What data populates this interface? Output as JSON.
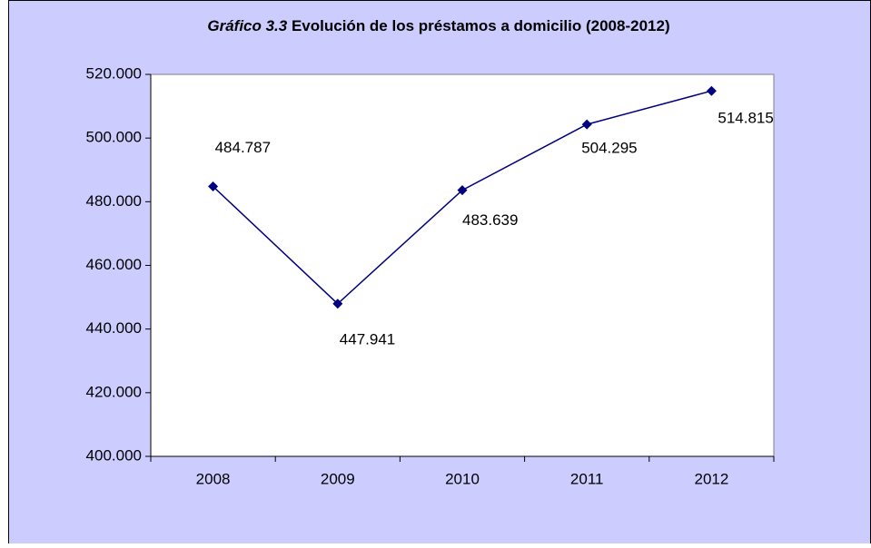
{
  "chart_data": {
    "type": "line",
    "title_label": "Gráfico 3.3",
    "title": "Evolución de los préstamos a domicilio (2008-2012)",
    "categories": [
      "2008",
      "2009",
      "2010",
      "2011",
      "2012"
    ],
    "series": [
      {
        "color": "#000080",
        "values": [
          484787,
          447941,
          483639,
          504295,
          514815
        ],
        "value_labels": [
          "484.787",
          "447.941",
          "483.639",
          "504.295",
          "514.815"
        ]
      }
    ],
    "ylim": [
      400000,
      520000
    ],
    "yticks": [
      {
        "value": 400000,
        "label": "400.000"
      },
      {
        "value": 420000,
        "label": "420.000"
      },
      {
        "value": 440000,
        "label": "440.000"
      },
      {
        "value": 460000,
        "label": "460.000"
      },
      {
        "value": 480000,
        "label": "480.000"
      },
      {
        "value": 500000,
        "label": "500.000"
      },
      {
        "value": 520000,
        "label": "520.000"
      }
    ],
    "grid": false
  }
}
